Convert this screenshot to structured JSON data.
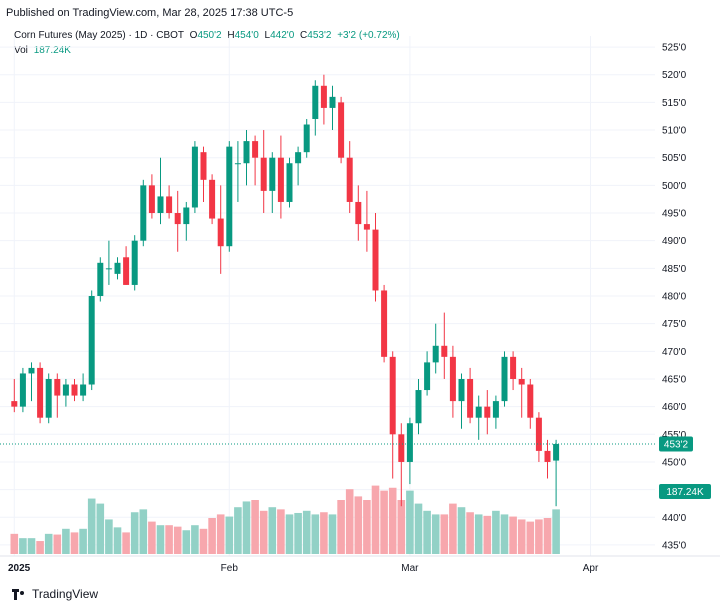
{
  "header": {
    "published": "Published on TradingView.com, Mar 28, 2025 17:38 UTC-5"
  },
  "legend": {
    "symbol": "Corn Futures (May 2025) · 1D · CBOT",
    "o_label": "O",
    "o_value": "450'2",
    "h_label": "H",
    "h_value": "454'0",
    "l_label": "L",
    "l_value": "442'0",
    "c_label": "C",
    "c_value": "453'2",
    "change": "+3'2 (+0.72%)",
    "vol_label": "Vol",
    "vol_value": "187.24K"
  },
  "badges": {
    "price": "453'2",
    "volume": "187.24K"
  },
  "footer": {
    "brand": "TradingView"
  },
  "colors": {
    "up": "#089981",
    "down": "#f23645",
    "vol_up": "#92d1c6",
    "vol_down": "#f7a7ad",
    "grid": "#f0f3fa",
    "text": "#131722"
  },
  "chart_data": {
    "type": "candlestick",
    "ylim": [
      433,
      527
    ],
    "y_ticks": [
      {
        "value": 525,
        "label": "525'0"
      },
      {
        "value": 520,
        "label": "520'0"
      },
      {
        "value": 515,
        "label": "515'0"
      },
      {
        "value": 510,
        "label": "510'0"
      },
      {
        "value": 505,
        "label": "505'0"
      },
      {
        "value": 500,
        "label": "500'0"
      },
      {
        "value": 495,
        "label": "495'0"
      },
      {
        "value": 490,
        "label": "490'0"
      },
      {
        "value": 485,
        "label": "485'0"
      },
      {
        "value": 480,
        "label": "480'0"
      },
      {
        "value": 475,
        "label": "475'0"
      },
      {
        "value": 470,
        "label": "470'0"
      },
      {
        "value": 465,
        "label": "465'0"
      },
      {
        "value": 460,
        "label": "460'0"
      },
      {
        "value": 455,
        "label": "455'0"
      },
      {
        "value": 450,
        "label": "450'0"
      },
      {
        "value": 445,
        "label": "445'0"
      },
      {
        "value": 440,
        "label": "440'0"
      },
      {
        "value": 435,
        "label": "435'0"
      }
    ],
    "x_ticks": [
      {
        "index": 0,
        "label": "2025"
      },
      {
        "index": 25,
        "label": "Feb"
      },
      {
        "index": 46,
        "label": "Mar"
      },
      {
        "index": 67,
        "label": "Apr"
      }
    ],
    "last_close": 453.25,
    "volume_max": 100,
    "candles": [
      {
        "o": 461,
        "h": 465,
        "l": 459,
        "c": 460,
        "v": 28
      },
      {
        "o": 460,
        "h": 467,
        "l": 459,
        "c": 466,
        "v": 22
      },
      {
        "o": 466,
        "h": 468,
        "l": 461,
        "c": 467,
        "v": 22
      },
      {
        "o": 467,
        "h": 468,
        "l": 457,
        "c": 458,
        "v": 18
      },
      {
        "o": 458,
        "h": 466,
        "l": 457,
        "c": 465,
        "v": 28
      },
      {
        "o": 465,
        "h": 466,
        "l": 458,
        "c": 462,
        "v": 27
      },
      {
        "o": 462,
        "h": 465,
        "l": 460,
        "c": 464,
        "v": 35
      },
      {
        "o": 464,
        "h": 465,
        "l": 461,
        "c": 462,
        "v": 30
      },
      {
        "o": 462,
        "h": 466,
        "l": 461,
        "c": 464,
        "v": 35
      },
      {
        "o": 464,
        "h": 481,
        "l": 463,
        "c": 480,
        "v": 77
      },
      {
        "o": 480,
        "h": 487,
        "l": 479,
        "c": 486,
        "v": 70
      },
      {
        "o": 485,
        "h": 490,
        "l": 482,
        "c": 485,
        "v": 48
      },
      {
        "o": 484,
        "h": 487,
        "l": 483,
        "c": 486,
        "v": 37
      },
      {
        "o": 487,
        "h": 489,
        "l": 482,
        "c": 482,
        "v": 30
      },
      {
        "o": 482,
        "h": 491,
        "l": 481,
        "c": 490,
        "v": 58
      },
      {
        "o": 490,
        "h": 501,
        "l": 489,
        "c": 500,
        "v": 62
      },
      {
        "o": 500,
        "h": 502,
        "l": 494,
        "c": 495,
        "v": 45
      },
      {
        "o": 495,
        "h": 505,
        "l": 493,
        "c": 498,
        "v": 40
      },
      {
        "o": 498,
        "h": 500,
        "l": 494,
        "c": 495,
        "v": 40
      },
      {
        "o": 495,
        "h": 499,
        "l": 488,
        "c": 493,
        "v": 38
      },
      {
        "o": 493,
        "h": 497,
        "l": 490,
        "c": 496,
        "v": 33
      },
      {
        "o": 496,
        "h": 508,
        "l": 495,
        "c": 507,
        "v": 40
      },
      {
        "o": 506,
        "h": 507,
        "l": 497,
        "c": 501,
        "v": 35
      },
      {
        "o": 501,
        "h": 502,
        "l": 493,
        "c": 494,
        "v": 50
      },
      {
        "o": 494,
        "h": 500,
        "l": 484,
        "c": 489,
        "v": 55
      },
      {
        "o": 489,
        "h": 508,
        "l": 488,
        "c": 507,
        "v": 52
      },
      {
        "o": 504,
        "h": 508,
        "l": 497,
        "c": 504,
        "v": 65
      },
      {
        "o": 504,
        "h": 510,
        "l": 500,
        "c": 508,
        "v": 73
      },
      {
        "o": 508,
        "h": 509,
        "l": 500,
        "c": 505,
        "v": 75
      },
      {
        "o": 505,
        "h": 510,
        "l": 495,
        "c": 499,
        "v": 60
      },
      {
        "o": 499,
        "h": 506,
        "l": 495,
        "c": 505,
        "v": 65
      },
      {
        "o": 505,
        "h": 509,
        "l": 494,
        "c": 497,
        "v": 62
      },
      {
        "o": 497,
        "h": 505,
        "l": 496,
        "c": 504,
        "v": 55
      },
      {
        "o": 504,
        "h": 507,
        "l": 500,
        "c": 506,
        "v": 57
      },
      {
        "o": 506,
        "h": 512,
        "l": 505,
        "c": 511,
        "v": 60
      },
      {
        "o": 512,
        "h": 519,
        "l": 509,
        "c": 518,
        "v": 55
      },
      {
        "o": 518,
        "h": 520,
        "l": 511,
        "c": 514,
        "v": 58
      },
      {
        "o": 514,
        "h": 518,
        "l": 510,
        "c": 516,
        "v": 55
      },
      {
        "o": 515,
        "h": 516,
        "l": 504,
        "c": 505,
        "v": 75
      },
      {
        "o": 505,
        "h": 508,
        "l": 495,
        "c": 497,
        "v": 90
      },
      {
        "o": 497,
        "h": 500,
        "l": 490,
        "c": 493,
        "v": 80
      },
      {
        "o": 493,
        "h": 499,
        "l": 488,
        "c": 492,
        "v": 75
      },
      {
        "o": 492,
        "h": 495,
        "l": 479,
        "c": 481,
        "v": 95
      },
      {
        "o": 481,
        "h": 482,
        "l": 468,
        "c": 469,
        "v": 88
      },
      {
        "o": 469,
        "h": 470,
        "l": 447,
        "c": 455,
        "v": 92
      },
      {
        "o": 455,
        "h": 457,
        "l": 442,
        "c": 450,
        "v": 75
      },
      {
        "o": 450,
        "h": 458,
        "l": 446,
        "c": 457,
        "v": 88
      },
      {
        "o": 457,
        "h": 465,
        "l": 455,
        "c": 463,
        "v": 70
      },
      {
        "o": 463,
        "h": 470,
        "l": 462,
        "c": 468,
        "v": 60
      },
      {
        "o": 468,
        "h": 475,
        "l": 466,
        "c": 471,
        "v": 55
      },
      {
        "o": 471,
        "h": 477,
        "l": 465,
        "c": 469,
        "v": 55
      },
      {
        "o": 469,
        "h": 471,
        "l": 458,
        "c": 461,
        "v": 70
      },
      {
        "o": 461,
        "h": 466,
        "l": 456,
        "c": 465,
        "v": 65
      },
      {
        "o": 465,
        "h": 467,
        "l": 457,
        "c": 458,
        "v": 58
      },
      {
        "o": 458,
        "h": 462,
        "l": 454,
        "c": 460,
        "v": 55
      },
      {
        "o": 460,
        "h": 463,
        "l": 455,
        "c": 458,
        "v": 53
      },
      {
        "o": 458,
        "h": 462,
        "l": 456,
        "c": 461,
        "v": 60
      },
      {
        "o": 461,
        "h": 470,
        "l": 460,
        "c": 469,
        "v": 55
      },
      {
        "o": 469,
        "h": 470,
        "l": 463,
        "c": 465,
        "v": 52
      },
      {
        "o": 465,
        "h": 467,
        "l": 458,
        "c": 464,
        "v": 48
      },
      {
        "o": 464,
        "h": 465,
        "l": 456,
        "c": 458,
        "v": 45
      },
      {
        "o": 458,
        "h": 459,
        "l": 450,
        "c": 452,
        "v": 48
      },
      {
        "o": 452,
        "h": 454,
        "l": 447,
        "c": 450,
        "v": 50
      },
      {
        "o": 450.25,
        "h": 454,
        "l": 442,
        "c": 453.25,
        "v": 62
      }
    ]
  }
}
